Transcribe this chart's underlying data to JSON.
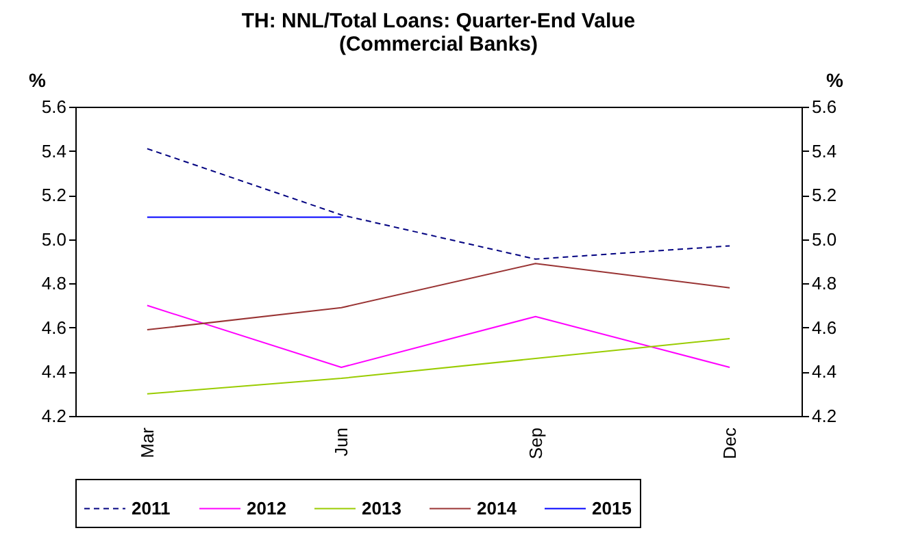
{
  "chart_data": {
    "type": "line",
    "title": "TH: NNL/Total Loans: Quarter-End Value\n(Commercial Banks)",
    "ylabel": "%",
    "y2label": "%",
    "categories": [
      "Mar",
      "Jun",
      "Sep",
      "Dec"
    ],
    "series": [
      {
        "name": "2011",
        "color": "#000080",
        "line_style": "dashed",
        "values": [
          5.41,
          5.11,
          4.91,
          4.97
        ]
      },
      {
        "name": "2012",
        "color": "#ff00ff",
        "line_style": "solid",
        "values": [
          4.7,
          4.42,
          4.65,
          4.42
        ]
      },
      {
        "name": "2013",
        "color": "#99cc00",
        "line_style": "solid",
        "values": [
          4.3,
          4.37,
          4.46,
          4.55
        ]
      },
      {
        "name": "2014",
        "color": "#993333",
        "line_style": "solid",
        "values": [
          4.59,
          4.69,
          4.89,
          4.78
        ]
      },
      {
        "name": "2015",
        "color": "#0000ff",
        "line_style": "solid",
        "values": [
          5.1,
          5.1,
          null,
          null
        ]
      }
    ],
    "ylim": [
      4.2,
      5.6
    ],
    "yticks": [
      {
        "value": 4.2,
        "label": "4.2"
      },
      {
        "value": 4.4,
        "label": "4.4"
      },
      {
        "value": 4.6,
        "label": "4.6"
      },
      {
        "value": 4.8,
        "label": "4.8"
      },
      {
        "value": 5.0,
        "label": "5.0"
      },
      {
        "value": 5.2,
        "label": "5.2"
      },
      {
        "value": 5.4,
        "label": "5.4"
      },
      {
        "value": 5.6,
        "label": "5.6"
      }
    ],
    "y2lim": [
      4.2,
      5.6
    ],
    "y2ticks": [
      {
        "value": 4.2,
        "label": "4.2"
      },
      {
        "value": 4.4,
        "label": "4.4"
      },
      {
        "value": 4.6,
        "label": "4.6"
      },
      {
        "value": 4.8,
        "label": "4.8"
      },
      {
        "value": 5.0,
        "label": "5.0"
      },
      {
        "value": 5.2,
        "label": "5.2"
      },
      {
        "value": 5.4,
        "label": "5.4"
      },
      {
        "value": 5.6,
        "label": "5.6"
      }
    ],
    "grid": false,
    "legend": "bottom"
  }
}
